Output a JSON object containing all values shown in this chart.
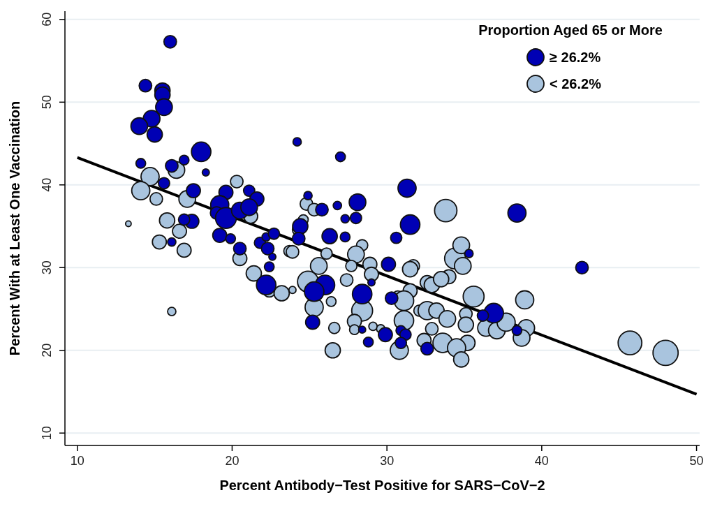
{
  "chart_data": {
    "type": "bubble",
    "xlabel": "Percent Antibody−Test Positive for SARS−CoV−2",
    "ylabel": "Percent With at Least One Vaccination",
    "legend_title": "Proportion Aged 65 or More",
    "legend": "top right",
    "grid": "y",
    "marker": "circle",
    "xlim": [
      9.2,
      50.2
    ],
    "ylim": [
      8.5,
      61
    ],
    "xticks": [
      10,
      20,
      30,
      40,
      50
    ],
    "yticks": [
      10,
      20,
      30,
      40,
      50,
      60
    ],
    "series": [
      {
        "name": "≥ 26.2%",
        "color": "#0000b4",
        "x": [
          16.0,
          14.4,
          15.5,
          15.5,
          15.6,
          14.8,
          14.0,
          15.0,
          18.0,
          14.1,
          16.9,
          18.3,
          16.1,
          24.2,
          27.0,
          15.6,
          17.5,
          19.6,
          21.1,
          21.6,
          19.2,
          19.0,
          19.6,
          20.5,
          21.1,
          17.4,
          16.9,
          16.1,
          19.2,
          19.9,
          20.5,
          21.8,
          22.2,
          22.7,
          22.3,
          22.6,
          22.4,
          22.2,
          31.3,
          24.9,
          25.8,
          26.8,
          28.1,
          27.3,
          28.0,
          31.5,
          30.6,
          24.4,
          24.3,
          26.3,
          27.3,
          30.1,
          26.0,
          25.3,
          29.0,
          28.4,
          28.4,
          29.9,
          28.8,
          25.2,
          30.3,
          30.9,
          31.2,
          30.9,
          32.6,
          38.4,
          42.6,
          35.3,
          36.9,
          36.2,
          38.4
        ],
        "values": [
          57.3,
          52.0,
          51.4,
          50.9,
          49.4,
          48.0,
          47.1,
          46.1,
          44.0,
          42.6,
          43.0,
          41.5,
          42.3,
          45.2,
          43.4,
          40.2,
          39.3,
          39.1,
          39.3,
          38.3,
          37.6,
          36.6,
          36.0,
          36.9,
          37.3,
          35.6,
          35.8,
          33.1,
          33.9,
          33.5,
          32.3,
          33.0,
          33.7,
          34.1,
          32.3,
          31.3,
          30.1,
          27.9,
          39.6,
          38.7,
          37.0,
          37.5,
          37.9,
          35.9,
          36.0,
          35.2,
          33.6,
          35.0,
          33.5,
          33.8,
          33.7,
          30.4,
          27.9,
          27.1,
          28.2,
          26.8,
          22.5,
          21.9,
          21.0,
          23.4,
          26.3,
          22.4,
          21.9,
          20.9,
          20.2,
          36.6,
          30.0,
          31.7,
          24.5,
          24.2,
          22.4
        ],
        "sizes": [
          0.25,
          0.25,
          0.37,
          0.37,
          0.44,
          0.44,
          0.44,
          0.37,
          0.6,
          0.15,
          0.15,
          0.08,
          0.25,
          0.11,
          0.15,
          0.2,
          0.31,
          0.31,
          0.2,
          0.31,
          0.52,
          0.25,
          0.69,
          0.44,
          0.44,
          0.31,
          0.2,
          0.11,
          0.31,
          0.15,
          0.25,
          0.2,
          0.11,
          0.2,
          0.25,
          0.08,
          0.15,
          0.6,
          0.52,
          0.11,
          0.25,
          0.11,
          0.44,
          0.11,
          0.2,
          0.6,
          0.2,
          0.37,
          0.25,
          0.37,
          0.15,
          0.31,
          0.6,
          0.6,
          0.08,
          0.6,
          0.08,
          0.31,
          0.15,
          0.31,
          0.25,
          0.15,
          0.2,
          0.2,
          0.25,
          0.52,
          0.25,
          0.11,
          0.6,
          0.2,
          0.15
        ]
      },
      {
        "name": "< 26.2%",
        "color": "#a9c4de",
        "x": [
          14.7,
          16.4,
          14.1,
          15.1,
          17.1,
          20.3,
          13.3,
          15.8,
          21.2,
          16.6,
          15.3,
          16.9,
          20.5,
          21.4,
          22.4,
          23.2,
          16.1,
          23.7,
          24.8,
          25.3,
          33.8,
          24.6,
          24.3,
          23.9,
          26.1,
          28.4,
          28.0,
          27.7,
          28.9,
          29.0,
          31.7,
          31.5,
          25.6,
          24.9,
          23.9,
          27.4,
          28.4,
          27.9,
          27.9,
          29.1,
          29.6,
          25.3,
          26.4,
          26.6,
          26.5,
          30.7,
          31.5,
          31.1,
          31.1,
          30.8,
          32.1,
          32.6,
          33.2,
          32.6,
          32.9,
          34.0,
          34.4,
          32.9,
          32.4,
          33.6,
          33.9,
          34.8,
          34.9,
          33.5,
          35.6,
          38.9,
          36.4,
          37.1,
          37.7,
          39.0,
          38.7,
          35.1,
          35.1,
          35.2,
          34.5,
          34.8,
          45.7,
          48.0
        ],
        "values": [
          41.0,
          41.8,
          39.3,
          38.3,
          38.3,
          40.4,
          35.3,
          35.7,
          36.2,
          34.4,
          33.1,
          32.1,
          31.1,
          29.3,
          27.2,
          26.9,
          24.7,
          32.0,
          37.7,
          37.0,
          36.9,
          35.8,
          34.6,
          31.9,
          31.7,
          32.7,
          31.6,
          30.2,
          30.4,
          29.2,
          30.2,
          29.8,
          30.2,
          28.3,
          27.3,
          28.5,
          24.8,
          23.5,
          22.5,
          22.9,
          22.6,
          25.2,
          25.9,
          22.7,
          20.0,
          26.5,
          27.2,
          26.0,
          23.6,
          20.0,
          24.8,
          24.8,
          24.8,
          28.2,
          27.9,
          28.9,
          31.1,
          22.6,
          21.2,
          20.9,
          23.8,
          32.7,
          30.2,
          28.6,
          26.5,
          26.1,
          22.7,
          22.4,
          23.4,
          22.7,
          21.5,
          24.4,
          23.1,
          20.9,
          20.3,
          18.9,
          20.9,
          19.7
        ],
        "sizes": [
          0.52,
          0.44,
          0.52,
          0.25,
          0.44,
          0.25,
          0.05,
          0.37,
          0.31,
          0.31,
          0.31,
          0.31,
          0.31,
          0.37,
          0.25,
          0.37,
          0.11,
          0.2,
          0.25,
          0.25,
          0.79,
          0.15,
          0.25,
          0.25,
          0.2,
          0.2,
          0.44,
          0.2,
          0.31,
          0.31,
          0.25,
          0.37,
          0.44,
          0.69,
          0.08,
          0.25,
          0.69,
          0.31,
          0.15,
          0.11,
          0.11,
          0.52,
          0.15,
          0.2,
          0.37,
          0.2,
          0.31,
          0.6,
          0.6,
          0.52,
          0.2,
          0.52,
          0.37,
          0.31,
          0.37,
          0.31,
          0.69,
          0.25,
          0.31,
          0.6,
          0.44,
          0.44,
          0.44,
          0.37,
          0.69,
          0.52,
          0.44,
          0.44,
          0.52,
          0.44,
          0.44,
          0.25,
          0.37,
          0.37,
          0.52,
          0.37,
          0.89,
          1
        ]
      },
      {
        "color": "#000000",
        "type": "line",
        "marker": "none",
        "x": [
          10,
          50
        ],
        "values": [
          43.3,
          14.7
        ]
      }
    ]
  }
}
